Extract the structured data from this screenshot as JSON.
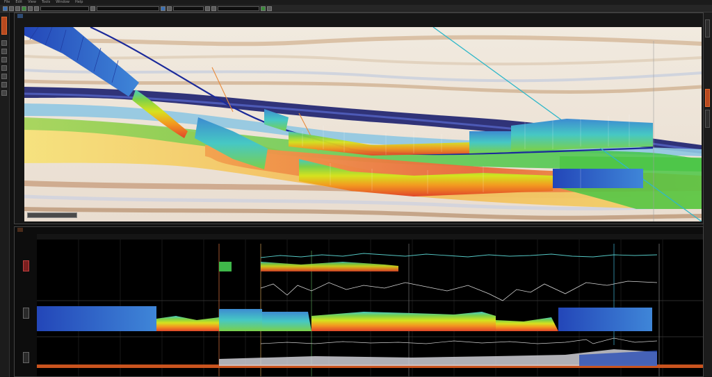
{
  "app": {
    "menu": [
      "File",
      "Edit",
      "View",
      "Tools",
      "Window",
      "Help"
    ],
    "toolbar_fields": [
      "",
      "",
      "",
      ""
    ],
    "accent_color": "#e0682f"
  },
  "seismic_window": {
    "tab_label": "",
    "icons": [
      "pan-icon",
      "zoom-icon",
      "pick-icon",
      "layers-icon"
    ],
    "colormap": [
      "#1f3f9e",
      "#3d8bd1",
      "#46c8c4",
      "#7bd04a",
      "#d6e21e",
      "#f39a20",
      "#e0452a"
    ]
  },
  "log_window": {
    "tab_label": "",
    "track_count": 3
  }
}
